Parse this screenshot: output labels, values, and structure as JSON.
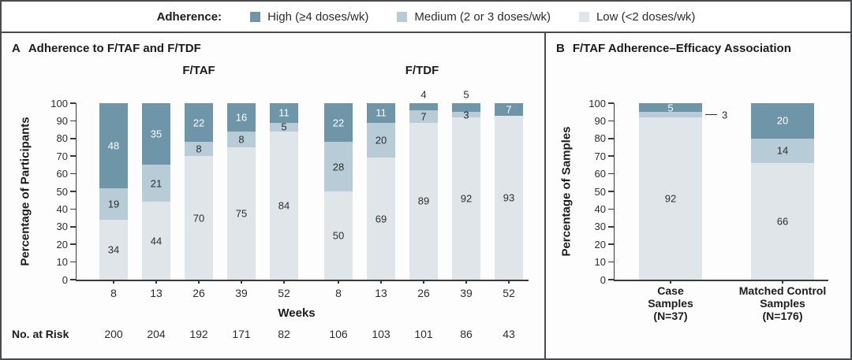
{
  "legend": {
    "title": "Adherence:",
    "items": [
      {
        "name": "high",
        "label": "High (≥4 doses/wk)",
        "color": "#6f95a8"
      },
      {
        "name": "medium",
        "label": "Medium (2 or 3 doses/wk)",
        "color": "#b8ccd7"
      },
      {
        "name": "low",
        "label": "Low (<2 doses/wk)",
        "color": "#dfe5e9"
      }
    ]
  },
  "panel_a": {
    "letter": "A",
    "title": "Adherence to F/TAF and F/TDF",
    "ylabel": "Percentage of Participants",
    "xlabel": "Weeks",
    "risk_label": "No. at Risk"
  },
  "panel_b": {
    "letter": "B",
    "title": "F/TAF Adherence–Efficacy Association",
    "ylabel": "Percentage of Samples"
  },
  "chart_data": [
    {
      "type": "bar",
      "stacked": true,
      "panel": "A",
      "title": "Adherence to F/TAF and F/TDF",
      "ylabel": "Percentage of Participants",
      "xlabel": "Weeks",
      "ylim": [
        0,
        100
      ],
      "yticks": [
        0,
        10,
        20,
        30,
        40,
        50,
        60,
        70,
        80,
        90,
        100
      ],
      "legend_position": "top",
      "grid": false,
      "groups": [
        {
          "name": "F/TAF",
          "categories": [
            "8",
            "13",
            "26",
            "39",
            "52"
          ],
          "series": [
            {
              "name": "Low (<2 doses/wk)",
              "color": "#dfe5e9",
              "label_color": "#2d2d2d",
              "values": [
                34,
                44,
                70,
                75,
                84
              ],
              "label_placement": [
                "in",
                "in",
                "in",
                "in",
                "in"
              ]
            },
            {
              "name": "Medium (2 or 3 doses/wk)",
              "color": "#b8ccd7",
              "label_color": "#2d2d2d",
              "values": [
                19,
                21,
                8,
                8,
                5
              ],
              "label_placement": [
                "in",
                "in",
                "in",
                "in",
                "in"
              ]
            },
            {
              "name": "High (≥4 doses/wk)",
              "color": "#6f95a8",
              "label_color": "#ffffff",
              "values": [
                48,
                35,
                22,
                16,
                11
              ],
              "label_placement": [
                "in",
                "in",
                "in",
                "in",
                "in"
              ]
            }
          ],
          "no_at_risk": [
            200,
            204,
            192,
            171,
            82
          ]
        },
        {
          "name": "F/TDF",
          "categories": [
            "8",
            "13",
            "26",
            "39",
            "52"
          ],
          "series": [
            {
              "name": "Low (<2 doses/wk)",
              "color": "#dfe5e9",
              "label_color": "#2d2d2d",
              "values": [
                50,
                69,
                89,
                92,
                93
              ],
              "label_placement": [
                "in",
                "in",
                "in",
                "in",
                "in"
              ]
            },
            {
              "name": "Medium (2 or 3 doses/wk)",
              "color": "#b8ccd7",
              "label_color": "#2d2d2d",
              "values": [
                28,
                20,
                7,
                3,
                0
              ],
              "label_placement": [
                "in",
                "in",
                "in",
                "in",
                "none"
              ]
            },
            {
              "name": "High (≥4 doses/wk)",
              "color": "#6f95a8",
              "label_color": "#ffffff",
              "values": [
                22,
                11,
                4,
                5,
                7
              ],
              "label_placement": [
                "in",
                "in",
                "above",
                "above",
                "in"
              ]
            }
          ],
          "no_at_risk": [
            106,
            103,
            101,
            86,
            43
          ]
        }
      ]
    },
    {
      "type": "bar",
      "stacked": true,
      "panel": "B",
      "title": "F/TAF Adherence–Efficacy Association",
      "ylabel": "Percentage of Samples",
      "ylim": [
        0,
        100
      ],
      "yticks": [
        0,
        10,
        20,
        30,
        40,
        50,
        60,
        70,
        80,
        90,
        100
      ],
      "grid": false,
      "groups": [
        {
          "name": "",
          "categories": [
            "Case Samples (N=37)",
            "Matched Control Samples (N=176)"
          ],
          "category_lines": [
            [
              "Case",
              "Samples",
              "(N=37)"
            ],
            [
              "Matched Control",
              "Samples",
              "(N=176)"
            ]
          ],
          "series": [
            {
              "name": "Low (<2 doses/wk)",
              "color": "#dfe5e9",
              "label_color": "#2d2d2d",
              "values": [
                92,
                66
              ],
              "label_placement": [
                "in",
                "in"
              ]
            },
            {
              "name": "Medium (2 or 3 doses/wk)",
              "color": "#b8ccd7",
              "label_color": "#2d2d2d",
              "values": [
                3,
                14
              ],
              "label_placement": [
                "callout",
                "in"
              ]
            },
            {
              "name": "High (≥4 doses/wk)",
              "color": "#6f95a8",
              "label_color": "#ffffff",
              "values": [
                5,
                20
              ],
              "label_placement": [
                "in",
                "in"
              ]
            }
          ]
        }
      ]
    }
  ]
}
